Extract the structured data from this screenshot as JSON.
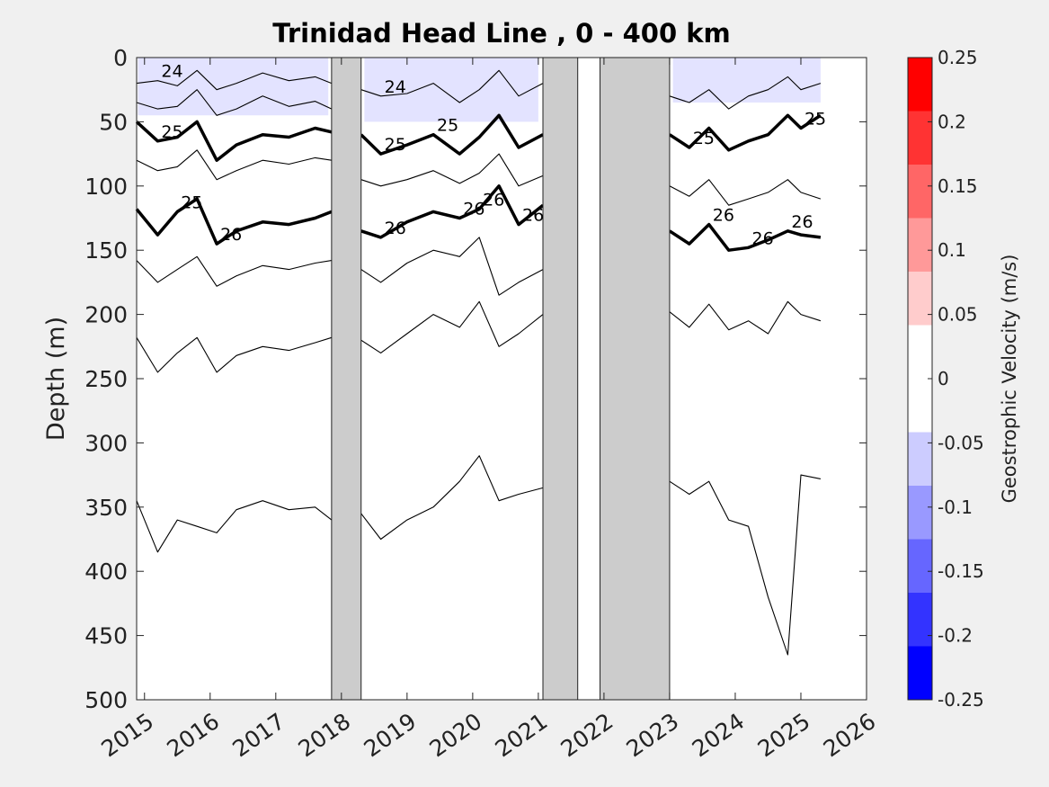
{
  "chart_data": {
    "type": "heatmap",
    "title": "Trinidad Head Line , 0 - 400 km",
    "ylabel": "Depth (m)",
    "xlim": [
      2014.88,
      2026.0
    ],
    "ylim": [
      0,
      500
    ],
    "y_reversed": true,
    "x_ticks": [
      "2015",
      "2016",
      "2017",
      "2018",
      "2019",
      "2020",
      "2021",
      "2022",
      "2023",
      "2024",
      "2025",
      "2026"
    ],
    "y_ticks": [
      "0",
      "50",
      "100",
      "150",
      "200",
      "250",
      "300",
      "350",
      "400",
      "450",
      "500"
    ],
    "grid": false,
    "gap_shading": [
      {
        "start": 2017.85,
        "end": 2018.3
      },
      {
        "start": 2021.07,
        "end": 2021.6
      },
      {
        "start": 2021.94,
        "end": 2023.0
      }
    ],
    "colorbar": {
      "label": "Geostrophic Velocity (m/s)",
      "range": [
        -0.25,
        0.25
      ],
      "ticks": [
        "0.25",
        "0.2",
        "0.15",
        "0.1",
        "0.05",
        "0",
        "-0.05",
        "-0.1",
        "-0.15",
        "-0.2",
        "-0.25"
      ],
      "colors": [
        "#ff0000",
        "#ff3333",
        "#ff6666",
        "#ff9999",
        "#ffcccc",
        "#ffffff",
        "#ffffff",
        "#ccccff",
        "#9999ff",
        "#6666ff",
        "#3333ff",
        "#0000ff"
      ]
    },
    "contour_labels": [
      "24",
      "25",
      "25",
      "26",
      "26",
      "26",
      "26",
      "26",
      "25",
      "26",
      "26",
      "26",
      "25",
      "24",
      "25",
      "25"
    ],
    "isopycnals": [
      {
        "x": [
          2014.88,
          2015.2,
          2015.5,
          2015.8,
          2016.1,
          2016.4,
          2016.8,
          2017.2,
          2017.6,
          2017.85
        ],
        "y": [
          20,
          18,
          22,
          10,
          25,
          20,
          12,
          18,
          15,
          20
        ]
      },
      {
        "x": [
          2014.88,
          2015.2,
          2015.5,
          2015.8,
          2016.1,
          2016.4,
          2016.8,
          2017.2,
          2017.6,
          2017.85
        ],
        "y": [
          35,
          40,
          38,
          25,
          45,
          40,
          30,
          38,
          34,
          40
        ]
      },
      {
        "x": [
          2014.88,
          2015.2,
          2015.5,
          2015.8,
          2016.1,
          2016.4,
          2016.8,
          2017.2,
          2017.6,
          2017.85
        ],
        "y": [
          50,
          65,
          62,
          50,
          80,
          68,
          60,
          62,
          55,
          58
        ]
      },
      {
        "x": [
          2014.88,
          2015.2,
          2015.5,
          2015.8,
          2016.1,
          2016.4,
          2016.8,
          2017.2,
          2017.6,
          2017.85
        ],
        "y": [
          80,
          88,
          85,
          72,
          95,
          88,
          80,
          83,
          78,
          80
        ]
      },
      {
        "x": [
          2014.88,
          2015.2,
          2015.5,
          2015.8,
          2016.1,
          2016.4,
          2016.8,
          2017.2,
          2017.6,
          2017.85
        ],
        "y": [
          118,
          138,
          120,
          110,
          145,
          135,
          128,
          130,
          125,
          120
        ]
      },
      {
        "x": [
          2014.88,
          2015.2,
          2015.5,
          2015.8,
          2016.1,
          2016.4,
          2016.8,
          2017.2,
          2017.6,
          2017.85
        ],
        "y": [
          158,
          175,
          165,
          155,
          178,
          170,
          162,
          165,
          160,
          158
        ]
      },
      {
        "x": [
          2014.88,
          2015.2,
          2015.5,
          2015.8,
          2016.1,
          2016.4,
          2016.8,
          2017.2,
          2017.6,
          2017.85
        ],
        "y": [
          218,
          245,
          230,
          218,
          245,
          232,
          225,
          228,
          222,
          218
        ]
      },
      {
        "x": [
          2014.88,
          2015.2,
          2015.5,
          2015.8,
          2016.1,
          2016.4,
          2016.8,
          2017.2,
          2017.6,
          2017.85
        ],
        "y": [
          345,
          385,
          360,
          365,
          370,
          352,
          345,
          352,
          350,
          360
        ]
      },
      {
        "x": [
          2018.3,
          2018.6,
          2019.0,
          2019.4,
          2019.8,
          2020.1,
          2020.4,
          2020.7,
          2021.07
        ],
        "y": [
          25,
          30,
          28,
          20,
          35,
          25,
          10,
          30,
          20
        ]
      },
      {
        "x": [
          2018.3,
          2018.6,
          2019.0,
          2019.4,
          2019.8,
          2020.1,
          2020.4,
          2020.7,
          2021.07
        ],
        "y": [
          60,
          75,
          68,
          60,
          75,
          62,
          45,
          70,
          60
        ]
      },
      {
        "x": [
          2018.3,
          2018.6,
          2019.0,
          2019.4,
          2019.8,
          2020.1,
          2020.4,
          2020.7,
          2021.07
        ],
        "y": [
          95,
          100,
          95,
          88,
          98,
          90,
          75,
          100,
          92
        ]
      },
      {
        "x": [
          2018.3,
          2018.6,
          2019.0,
          2019.4,
          2019.8,
          2020.1,
          2020.4,
          2020.7,
          2021.07
        ],
        "y": [
          135,
          140,
          128,
          120,
          125,
          118,
          100,
          130,
          115
        ]
      },
      {
        "x": [
          2018.3,
          2018.6,
          2019.0,
          2019.4,
          2019.8,
          2020.1,
          2020.4,
          2020.7,
          2021.07
        ],
        "y": [
          165,
          175,
          160,
          150,
          155,
          140,
          185,
          175,
          165
        ]
      },
      {
        "x": [
          2018.3,
          2018.6,
          2019.0,
          2019.4,
          2019.8,
          2020.1,
          2020.4,
          2020.7,
          2021.07
        ],
        "y": [
          220,
          230,
          215,
          200,
          210,
          190,
          225,
          215,
          200
        ]
      },
      {
        "x": [
          2018.3,
          2018.6,
          2019.0,
          2019.4,
          2019.8,
          2020.1,
          2020.4,
          2020.7,
          2021.07
        ],
        "y": [
          355,
          375,
          360,
          350,
          330,
          310,
          345,
          340,
          335
        ]
      },
      {
        "x": [
          2023.0,
          2023.3,
          2023.6,
          2023.9,
          2024.2,
          2024.5,
          2024.8,
          2025.0,
          2025.3
        ],
        "y": [
          30,
          35,
          25,
          40,
          30,
          25,
          15,
          25,
          20
        ]
      },
      {
        "x": [
          2023.0,
          2023.3,
          2023.6,
          2023.9,
          2024.2,
          2024.5,
          2024.8,
          2025.0,
          2025.3
        ],
        "y": [
          60,
          70,
          55,
          72,
          65,
          60,
          45,
          55,
          45
        ]
      },
      {
        "x": [
          2023.0,
          2023.3,
          2023.6,
          2023.9,
          2024.2,
          2024.5,
          2024.8,
          2025.0,
          2025.3
        ],
        "y": [
          100,
          108,
          95,
          115,
          110,
          105,
          95,
          105,
          110
        ]
      },
      {
        "x": [
          2023.0,
          2023.3,
          2023.6,
          2023.9,
          2024.2,
          2024.5,
          2024.8,
          2025.0,
          2025.3
        ],
        "y": [
          135,
          145,
          130,
          150,
          148,
          142,
          135,
          138,
          140
        ]
      },
      {
        "x": [
          2023.0,
          2023.3,
          2023.6,
          2023.9,
          2024.2,
          2024.5,
          2024.8,
          2025.0,
          2025.3
        ],
        "y": [
          198,
          210,
          192,
          212,
          205,
          215,
          190,
          200,
          205
        ]
      },
      {
        "x": [
          2023.0,
          2023.3,
          2023.6,
          2023.9,
          2024.2,
          2024.5,
          2024.8,
          2025.0,
          2025.3
        ],
        "y": [
          330,
          340,
          330,
          360,
          365,
          420,
          465,
          325,
          328
        ]
      }
    ]
  }
}
